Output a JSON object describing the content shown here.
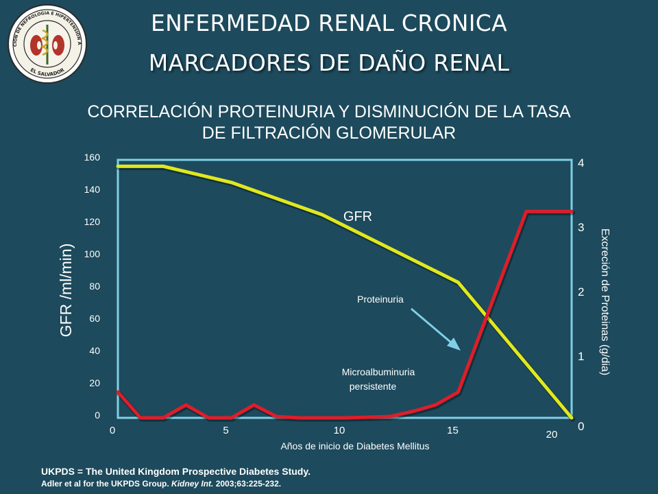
{
  "slide": {
    "title_line1": "ENFERMEDAD RENAL CRONICA",
    "title_line2": "MARCADORES DE DAÑO RENAL",
    "subtitle_line1": "CORRELACIÓN PROTEINURIA Y DISMINUCIÓN DE LA TASA",
    "subtitle_line2": "DE FILTRACIÓN GLOMERULAR",
    "logo_text_top": "ASOCIACION DE NEFROLOGIA E HIPERTENSION ARTERIAL",
    "logo_text_bottom": "EL SALVADOR"
  },
  "chart_data": {
    "type": "line",
    "xlabel": "Años de inicio de Diabetes Mellitus",
    "ylabel": "GFR /ml/min)",
    "y2label": "Excreción de Proteinas (g/dia)",
    "xlim": [
      0,
      20
    ],
    "ylim": [
      0,
      160
    ],
    "y2lim": [
      0,
      4
    ],
    "x_ticks": [
      "0",
      "5",
      "10",
      "15",
      "20"
    ],
    "y_ticks": [
      "0",
      "20",
      "40",
      "60",
      "80",
      "100",
      "120",
      "140",
      "160"
    ],
    "y2_ticks": [
      "0",
      "1",
      "2",
      "3",
      "4"
    ],
    "grid": false,
    "colors": {
      "gfr": "#e0e81e",
      "proteinuria": "#dd1e2a",
      "plot_bg": "#1d4a5c",
      "frame": "#7fd0e6",
      "arrow": "#7fd0e6"
    },
    "series": [
      {
        "label": "GFR",
        "axis": "left",
        "x": [
          0,
          2,
          5,
          9,
          15,
          20
        ],
        "y": [
          156,
          156,
          146,
          126,
          84,
          0
        ]
      },
      {
        "label": "Proteinuria",
        "axis": "right",
        "x": [
          0,
          1,
          2,
          3,
          4,
          5,
          6,
          7,
          8,
          10,
          12,
          13,
          14,
          15,
          18,
          20
        ],
        "y": [
          0.4,
          0,
          0,
          0.2,
          0,
          0,
          0.2,
          0.02,
          0,
          0,
          0.02,
          0.1,
          0.2,
          0.4,
          3.2,
          3.2
        ]
      }
    ],
    "annotations": [
      {
        "text": "GFR"
      },
      {
        "text": "Proteinuria"
      },
      {
        "text": "Microalbuminuria"
      },
      {
        "text": "persistente"
      }
    ]
  },
  "credits": {
    "line1": "UKPDS = The United Kingdom Prospective Diabetes Study.",
    "line2_prefix": "Adler et al for the UKPDS Group. ",
    "line2_journal": "Kidney Int.",
    "line2_suffix": " 2003;63:225-232."
  }
}
